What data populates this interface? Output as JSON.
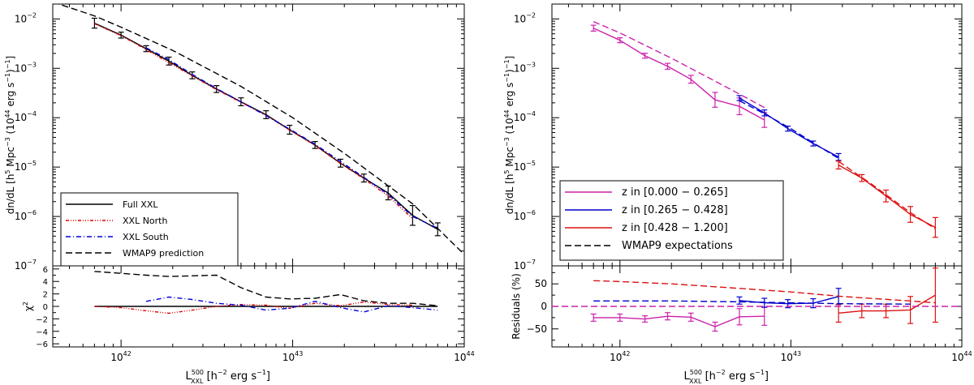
{
  "chart_data": [
    {
      "type": "line",
      "ylabel_parts": {
        "pre": "dn/dL [h",
        "sup1": "5",
        "mid": " Mpc",
        "sup2": "−3",
        "mid2": " (10",
        "sup3": "44",
        "post": " erg s",
        "sup4": "−1",
        "end": ")",
        "sup5": "−1",
        "close": "]"
      },
      "x_ticks": [
        {
          "base": "10",
          "exp": "42",
          "value": 1e+42
        },
        {
          "base": "10",
          "exp": "43",
          "value": 1e+43
        },
        {
          "base": "10",
          "exp": "44",
          "value": 1e+44
        }
      ],
      "y_ticks": [
        {
          "base": "10",
          "exp": "−7",
          "value": 1e-07
        },
        {
          "base": "10",
          "exp": "−6",
          "value": 1e-06
        },
        {
          "base": "10",
          "exp": "−5",
          "value": 1e-05
        },
        {
          "base": "10",
          "exp": "−4",
          "value": 0.0001
        },
        {
          "base": "10",
          "exp": "−3",
          "value": 0.001
        },
        {
          "base": "10",
          "exp": "−2",
          "value": 0.01
        }
      ],
      "xlim": [
        4e+41,
        1e+44
      ],
      "ylim": [
        1e-07,
        0.02
      ],
      "xscale": "log",
      "yscale": "log",
      "legend_position": "bottom-left",
      "series": [
        {
          "name": "Full XXL",
          "color": "#000000",
          "dash": "solid",
          "x": [
            7e+41,
            1e+42,
            1.4e+42,
            1.9e+42,
            2.6e+42,
            3.6e+42,
            5e+42,
            7e+42,
            9.6e+42,
            1.35e+43,
            1.9e+43,
            2.6e+43,
            3.6e+43,
            5e+43,
            7e+43
          ],
          "y": [
            0.0082,
            0.0047,
            0.0025,
            0.0014,
            0.00072,
            0.00038,
            0.00021,
            0.000115,
            5.7e-05,
            2.8e-05,
            1.2e-05,
            6e-06,
            3e-06,
            1.05e-06,
            5.5e-07
          ],
          "err": [
            0.1,
            0.06,
            0.06,
            0.08,
            0.07,
            0.07,
            0.08,
            0.08,
            0.09,
            0.07,
            0.08,
            0.08,
            0.14,
            0.2,
            0.13
          ]
        },
        {
          "name": "XXL North",
          "color": "#dd0000",
          "dash": "4,2,1,2,1,2,1,2",
          "x": [
            7e+41,
            1e+42,
            1.4e+42,
            1.9e+42,
            2.6e+42,
            3.6e+42,
            5e+42,
            7e+42,
            9.6e+42,
            1.35e+43,
            1.9e+43,
            2.6e+43,
            3.6e+43,
            5e+43
          ],
          "y": [
            0.008,
            0.0046,
            0.0024,
            0.0013,
            0.0007,
            0.00037,
            0.000205,
            0.000112,
            5.6e-05,
            2.75e-05,
            1.18e-05,
            5.8e-06,
            2.6e-06,
            9e-07
          ]
        },
        {
          "name": "XXL South",
          "color": "#0000dd",
          "dash": "6,3,1,3",
          "x": [
            1.4e+42,
            1.9e+42,
            2.6e+42,
            3.6e+42,
            5e+42,
            7e+42,
            9.6e+42,
            1.35e+43,
            1.9e+43,
            2.6e+43,
            3.6e+43,
            5e+43,
            7e+43
          ],
          "y": [
            0.0026,
            0.0015,
            0.00075,
            0.00039,
            0.00021,
            0.00011,
            5.9e-05,
            2.9e-05,
            1.3e-05,
            6.2e-06,
            2.8e-06,
            1e-06,
            5.8e-07
          ]
        },
        {
          "name": "WMAP9 prediction",
          "color": "#000000",
          "dash": "8,4",
          "x": [
            4e+41,
            7e+41,
            1e+42,
            2e+42,
            5e+42,
            1e+43,
            2e+43,
            5e+43,
            1e+44
          ],
          "y": [
            0.022,
            0.0115,
            0.0068,
            0.0023,
            0.00043,
            0.0001,
            1.9e-05,
            1.8e-06,
            1.7e-07
          ]
        }
      ],
      "residual_panel": {
        "ylabel": "χ",
        "ylabel_sup": "2",
        "ylim": [
          -6.5,
          6.5
        ],
        "y_ticks": [
          {
            "label": "−6",
            "value": -6
          },
          {
            "label": "−4",
            "value": -4
          },
          {
            "label": "−2",
            "value": -2
          },
          {
            "label": "0",
            "value": 0
          },
          {
            "label": "2",
            "value": 2
          },
          {
            "label": "4",
            "value": 4
          },
          {
            "label": "6",
            "value": 6
          }
        ],
        "series": [
          {
            "name": "Full XXL",
            "color": "#000000",
            "dash": "solid",
            "x": [
              7e+41,
              1e+42,
              2e+42,
              5e+42,
              1e+43,
              2e+43,
              5e+43,
              7e+43
            ],
            "y": [
              0,
              0,
              0,
              0,
              0,
              0,
              0,
              0
            ]
          },
          {
            "name": "XXL North",
            "color": "#dd0000",
            "dash": "4,2,1,2,1,2,1,2",
            "x": [
              7e+41,
              1e+42,
              1.4e+42,
              1.9e+42,
              2.6e+42,
              3.6e+42,
              5e+42,
              7e+42,
              9.6e+42,
              1.35e+43,
              1.9e+43,
              2.6e+43,
              3.6e+43,
              5e+43
            ],
            "y": [
              0,
              -0.2,
              -0.7,
              -1.1,
              -0.6,
              0,
              0.3,
              0.2,
              -0.3,
              0.5,
              0.1,
              0.7,
              0.3,
              0.2
            ]
          },
          {
            "name": "XXL South",
            "color": "#0000dd",
            "dash": "6,3,1,3",
            "x": [
              1.4e+42,
              1.9e+42,
              2.6e+42,
              3.6e+42,
              5e+42,
              7e+42,
              9.6e+42,
              1.35e+43,
              1.9e+43,
              2.6e+43,
              3.6e+43,
              5e+43,
              7e+43
            ],
            "y": [
              0.8,
              1.5,
              1.1,
              0.5,
              0.2,
              -0.6,
              -0.3,
              0.8,
              -0.2,
              -0.9,
              0.1,
              -0.2,
              -0.6
            ]
          },
          {
            "name": "WMAP9 prediction",
            "color": "#000000",
            "dash": "8,4",
            "x": [
              7e+41,
              1e+42,
              1.4e+42,
              1.9e+42,
              2.6e+42,
              3.6e+42,
              5e+42,
              7e+42,
              9.6e+42,
              1.35e+43,
              1.9e+43,
              2.6e+43,
              3.6e+43,
              5e+43,
              7e+43
            ],
            "y": [
              5.6,
              5.3,
              5.0,
              4.8,
              4.9,
              5.0,
              3.0,
              1.5,
              1.2,
              1.3,
              1.9,
              0.9,
              0.5,
              0.5,
              0.1
            ]
          }
        ]
      },
      "xlabel_parts": {
        "main": "L",
        "sup": "500",
        "sub": "XXL",
        "rest": "  [h",
        "sup2": "−2",
        "end": " erg s",
        "sup3": "−1",
        "close": "]"
      }
    },
    {
      "type": "line",
      "ylabel_parts": {
        "pre": "dn/dL [h",
        "sup1": "5",
        "mid": " Mpc",
        "sup2": "−3",
        "mid2": " (10",
        "sup3": "44",
        "post": " erg s",
        "sup4": "−1",
        "end": ")",
        "sup5": "−1",
        "close": "]"
      },
      "x_ticks": [
        {
          "base": "10",
          "exp": "42",
          "value": 1e+42
        },
        {
          "base": "10",
          "exp": "43",
          "value": 1e+43
        },
        {
          "base": "10",
          "exp": "44",
          "value": 1e+44
        }
      ],
      "y_ticks": [
        {
          "base": "10",
          "exp": "−7",
          "value": 1e-07
        },
        {
          "base": "10",
          "exp": "−6",
          "value": 1e-06
        },
        {
          "base": "10",
          "exp": "−5",
          "value": 1e-05
        },
        {
          "base": "10",
          "exp": "−4",
          "value": 0.0001
        },
        {
          "base": "10",
          "exp": "−3",
          "value": 0.001
        },
        {
          "base": "10",
          "exp": "−2",
          "value": 0.01
        }
      ],
      "xlim": [
        4e+41,
        1e+44
      ],
      "ylim": [
        1e-07,
        0.02
      ],
      "xscale": "log",
      "yscale": "log",
      "legend_position": "bottom-left",
      "series": [
        {
          "name": "z in [0.000 − 0.265]",
          "color": "#cc22aa",
          "dash": "solid",
          "x": [
            7e+41,
            1e+42,
            1.4e+42,
            1.9e+42,
            2.6e+42,
            3.6e+42,
            5e+42,
            7e+42
          ],
          "y": [
            0.0065,
            0.0037,
            0.0018,
            0.0011,
            0.0006,
            0.00023,
            0.00017,
            9e-05
          ],
          "err": [
            0.06,
            0.05,
            0.05,
            0.06,
            0.08,
            0.15,
            0.17,
            0.15
          ]
        },
        {
          "name": "z in [0.265 − 0.428]",
          "color": "#0000cc",
          "dash": "solid",
          "x": [
            5e+42,
            7e+42,
            9.6e+42,
            1.35e+43,
            1.9e+43
          ],
          "y": [
            0.00025,
            0.000125,
            6e-05,
            3e-05,
            1.6e-05
          ],
          "err": [
            0.05,
            0.06,
            0.05,
            0.05,
            0.07
          ]
        },
        {
          "name": "z in [0.428 − 1.200]",
          "color": "#dd1111",
          "dash": "solid",
          "x": [
            1.9e+43,
            2.6e+43,
            3.6e+43,
            5e+43,
            7e+43
          ],
          "y": [
            1.1e-05,
            6e-06,
            2.6e-06,
            1.1e-06,
            6e-07
          ],
          "err": [
            0.08,
            0.07,
            0.12,
            0.16,
            0.2
          ]
        },
        {
          "name": "WMAP9 expectations",
          "color": "#000000",
          "dash": "8,4",
          "legend_only": true,
          "x": [],
          "y": []
        },
        {
          "name": "WMAP9 low-z",
          "legend_hidden": true,
          "color": "#cc22aa",
          "dash": "8,4",
          "x": [
            7e+41,
            1e+42,
            2e+42,
            3.6e+42,
            5e+42,
            7e+42
          ],
          "y": [
            0.0088,
            0.0052,
            0.0016,
            0.00055,
            0.0003,
            0.00016
          ]
        },
        {
          "name": "WMAP9 mid-z",
          "legend_hidden": true,
          "color": "#0000cc",
          "dash": "8,4",
          "x": [
            5e+42,
            7e+42,
            1e+43,
            1.35e+43,
            1.9e+43
          ],
          "y": [
            0.00022,
            0.00012,
            6e-05,
            3.1e-05,
            1.5e-05
          ]
        },
        {
          "name": "WMAP9 high-z",
          "legend_hidden": true,
          "color": "#dd1111",
          "dash": "8,4",
          "x": [
            1.9e+43,
            3e+43,
            5e+43,
            7e+43
          ],
          "y": [
            1.3e-05,
            4.4e-06,
            1.2e-06,
            5.6e-07
          ]
        }
      ],
      "residual_panel": {
        "ylabel": "Residuals (%)",
        "ylim": [
          -90,
          90
        ],
        "y_ticks": [
          {
            "label": "−50",
            "value": -50
          },
          {
            "label": "0",
            "value": 0
          },
          {
            "label": "50",
            "value": 50
          }
        ],
        "series": [
          {
            "name": "z in [0.000 − 0.265]",
            "color": "#cc22aa",
            "dash": "solid",
            "x": [
              7e+41,
              1e+42,
              1.4e+42,
              1.9e+42,
              2.6e+42,
              3.6e+42,
              5e+42,
              7e+42
            ],
            "y": [
              -25,
              -25,
              -28,
              -22,
              -24,
              -45,
              -23,
              -22
            ],
            "err": [
              8,
              8,
              7,
              8,
              9,
              10,
              18,
              20
            ]
          },
          {
            "name": "z in [0.265 − 0.428]",
            "color": "#0000cc",
            "dash": "solid",
            "x": [
              5e+42,
              7e+42,
              9.6e+42,
              1.35e+43,
              1.9e+43
            ],
            "y": [
              13,
              8,
              6,
              7,
              22
            ],
            "err": [
              8,
              10,
              9,
              10,
              18
            ]
          },
          {
            "name": "z in [0.428 − 1.200]",
            "color": "#dd1111",
            "dash": "solid",
            "x": [
              1.9e+43,
              2.6e+43,
              3.6e+43,
              5e+43,
              7e+43
            ],
            "y": [
              -15,
              -10,
              -10,
              -8,
              25
            ],
            "err": [
              20,
              15,
              15,
              30,
              60
            ]
          },
          {
            "name": "WMAP9 low-z",
            "color": "#dd1111",
            "dash": "8,4",
            "x": [
              7e+41,
              1e+42,
              2e+42,
              5e+42,
              1e+43,
              2e+43,
              5e+43,
              7e+43
            ],
            "y": [
              57,
              55,
              50,
              40,
              32,
              22,
              12,
              8
            ]
          },
          {
            "name": "WMAP9 mid-z",
            "color": "#0000cc",
            "dash": "8,4",
            "x": [
              7e+41,
              1e+42,
              2e+42,
              5e+42,
              1e+43,
              2e+43,
              5e+43
            ],
            "y": [
              12,
              12,
              12,
              10,
              8,
              6,
              5
            ]
          },
          {
            "name": "zero line",
            "color": "#cc22aa",
            "dash": "8,4",
            "x": [
              4e+41,
              1e+44
            ],
            "y": [
              0,
              0
            ]
          }
        ]
      },
      "xlabel_parts": {
        "main": "L",
        "sup": "500",
        "sub": "XXL",
        "rest": "  [h",
        "sup2": "−2",
        "end": " erg s",
        "sup3": "−1",
        "close": "]"
      }
    }
  ]
}
